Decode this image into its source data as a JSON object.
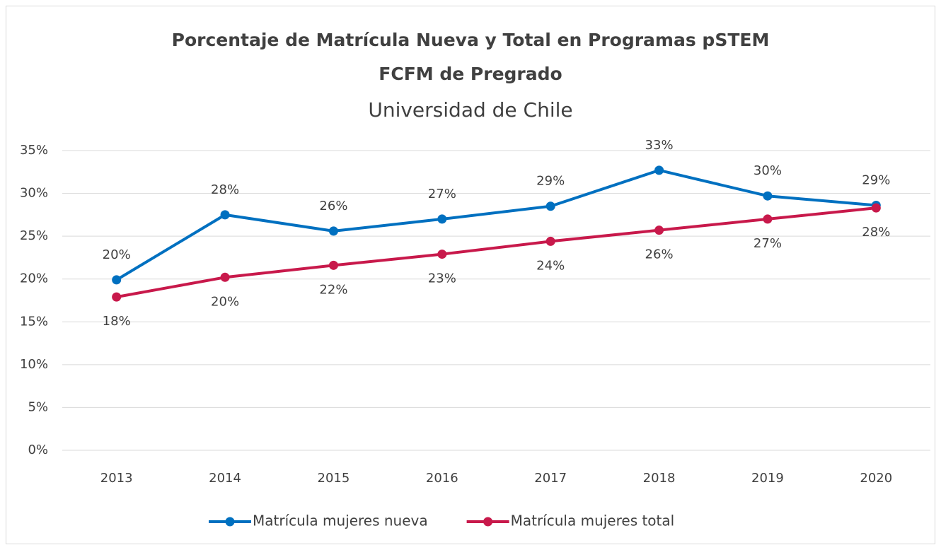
{
  "chart_data": {
    "type": "line",
    "title": [
      "Porcentaje de Matrícula Nueva y Total en Programas pSTEM",
      "FCFM de Pregrado"
    ],
    "subtitle": "Universidad de Chile",
    "categories": [
      "2013",
      "2014",
      "2015",
      "2016",
      "2017",
      "2018",
      "2019",
      "2020"
    ],
    "series": [
      {
        "name": "Matrícula mujeres nueva",
        "color": "#0070c0",
        "values": [
          19.9,
          27.5,
          25.6,
          27.0,
          28.5,
          32.7,
          29.7,
          28.6
        ],
        "value_labels": [
          "20%",
          "28%",
          "26%",
          "27%",
          "29%",
          "33%",
          "30%",
          "29%"
        ]
      },
      {
        "name": "Matrícula mujeres total",
        "color": "#c8194b",
        "values": [
          17.9,
          20.2,
          21.6,
          22.9,
          24.4,
          25.7,
          27.0,
          28.3
        ],
        "value_labels": [
          "18%",
          "20%",
          "22%",
          "23%",
          "24%",
          "26%",
          "27%",
          "28%"
        ]
      }
    ],
    "ylim": [
      0,
      35
    ],
    "yticks": [
      {
        "value": 0,
        "label": "0%"
      },
      {
        "value": 5,
        "label": "5%"
      },
      {
        "value": 10,
        "label": "10%"
      },
      {
        "value": 15,
        "label": "15%"
      },
      {
        "value": 20,
        "label": "20%"
      },
      {
        "value": 25,
        "label": "25%"
      },
      {
        "value": 30,
        "label": "30%"
      },
      {
        "value": 35,
        "label": "35%"
      }
    ],
    "grid": true,
    "legend": "bottom"
  }
}
